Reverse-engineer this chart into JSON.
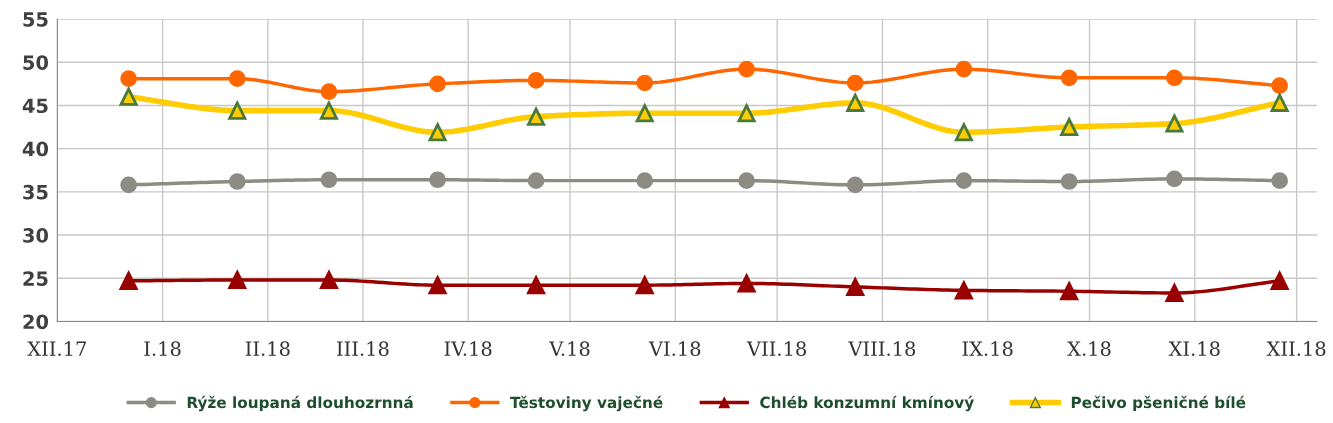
{
  "chart_data": {
    "type": "line",
    "x": [
      "2017-12-22",
      "2018-01-23",
      "2018-02-19",
      "2018-03-23",
      "2018-04-21",
      "2018-05-23",
      "2018-06-22",
      "2018-07-24",
      "2018-08-25",
      "2018-09-25",
      "2018-10-26",
      "2018-11-26"
    ],
    "series": [
      {
        "name": "Rýže loupaná dlouhozrnná",
        "color": "#8c8c84",
        "marker": "circle",
        "values": [
          35.8,
          36.2,
          36.4,
          36.4,
          36.3,
          36.3,
          36.3,
          35.8,
          36.3,
          36.2,
          36.5,
          36.3
        ]
      },
      {
        "name": "Těstoviny vaječné",
        "color": "#ff6600",
        "marker": "circle",
        "values": [
          48.1,
          48.1,
          46.6,
          47.5,
          47.9,
          47.6,
          49.2,
          47.6,
          49.2,
          48.2,
          48.2,
          47.3
        ]
      },
      {
        "name": "Chléb konzumní kmínový",
        "color": "#990000",
        "marker": "triangle",
        "values": [
          24.7,
          24.8,
          24.8,
          24.2,
          24.2,
          24.2,
          24.4,
          24.0,
          23.6,
          23.5,
          23.3,
          24.7
        ]
      },
      {
        "name": "Pečivo pšeničné bílé",
        "color": "#ffcc00",
        "marker": "triangle",
        "values": [
          46.0,
          44.4,
          44.4,
          41.9,
          43.7,
          44.1,
          44.1,
          45.3,
          41.9,
          42.5,
          42.9,
          45.3
        ]
      }
    ],
    "xlim": [
      "2017-12-01",
      "2018-12-07"
    ],
    "xticks": [
      {
        "value": "2017-12-01",
        "label": "XII.17"
      },
      {
        "value": "2018-01-01",
        "label": "I.18"
      },
      {
        "value": "2018-02-01",
        "label": "II.18"
      },
      {
        "value": "2018-03-01",
        "label": "III.18"
      },
      {
        "value": "2018-04-01",
        "label": "IV.18"
      },
      {
        "value": "2018-05-01",
        "label": "V.18"
      },
      {
        "value": "2018-06-01",
        "label": "VI.18"
      },
      {
        "value": "2018-07-01",
        "label": "VII.18"
      },
      {
        "value": "2018-08-01",
        "label": "VIII.18"
      },
      {
        "value": "2018-09-01",
        "label": "IX.18"
      },
      {
        "value": "2018-10-01",
        "label": "X.18"
      },
      {
        "value": "2018-11-01",
        "label": "XI.18"
      },
      {
        "value": "2018-12-01",
        "label": "XII.18"
      }
    ],
    "ylim": [
      20,
      55
    ],
    "yticks": [
      20,
      25,
      30,
      35,
      40,
      45,
      50,
      55
    ],
    "grid": true,
    "legend": "bottom",
    "line_style": "solid"
  }
}
